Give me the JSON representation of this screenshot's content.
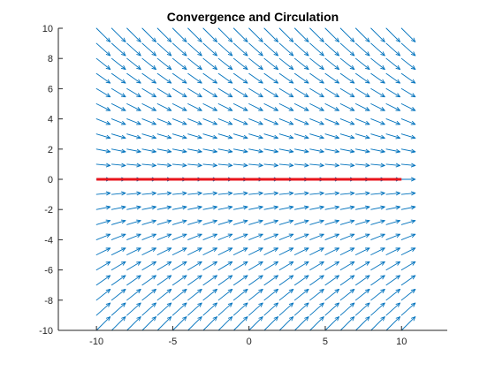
{
  "chart_data": {
    "type": "quiver",
    "title": "Convergence and Circulation",
    "xlabel": "",
    "ylabel": "",
    "xlim": [
      -12.5,
      13
    ],
    "ylim": [
      -10,
      10
    ],
    "x_ticks": [
      -10,
      -5,
      0,
      5,
      10
    ],
    "x_tick_labels": [
      "-10",
      "-5",
      "0",
      "5",
      "10"
    ],
    "y_ticks": [
      -10,
      -8,
      -6,
      -4,
      -2,
      0,
      2,
      4,
      6,
      8,
      10
    ],
    "y_tick_labels": [
      "-10",
      "-8",
      "-6",
      "-4",
      "-2",
      "0",
      "2",
      "4",
      "6",
      "8",
      "10"
    ],
    "grid": false,
    "box": false,
    "series": [
      {
        "type": "quiver",
        "grid_x": [
          -10,
          10,
          1
        ],
        "grid_y": [
          -10,
          10,
          1
        ],
        "field": {
          "u": 1,
          "v": "-y/10"
        },
        "color": "#0072BD"
      },
      {
        "type": "line",
        "x": [
          -10,
          10
        ],
        "y": [
          0,
          0
        ],
        "color": "#E8141C"
      }
    ]
  }
}
